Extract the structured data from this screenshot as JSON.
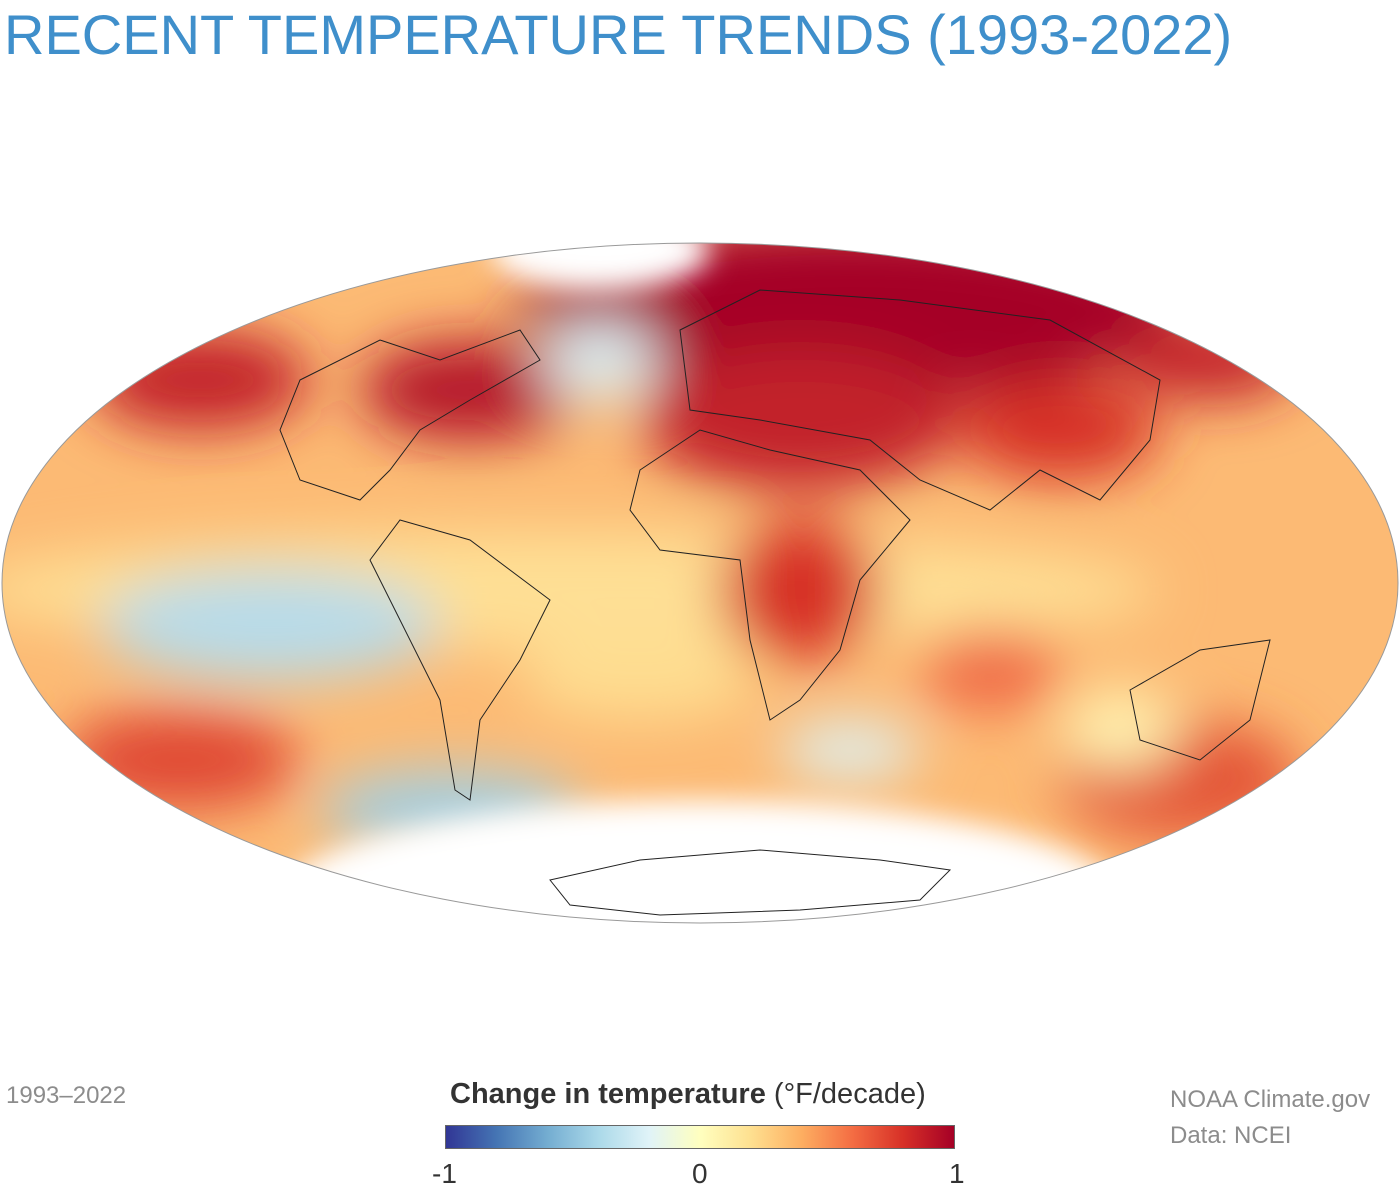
{
  "title": "RECENT TEMPERATURE TRENDS (1993-2022)",
  "period_label": "1993–2022",
  "credit": {
    "line1": "NOAA Climate.gov",
    "line2": "Data: NCEI"
  },
  "legend": {
    "title_bold": "Change in temperature",
    "units": "(°F/decade)",
    "min_label": "-1",
    "mid_label": "0",
    "max_label": "1",
    "colors": [
      "#313695",
      "#4575b4",
      "#74add1",
      "#abd9e9",
      "#e0f3f8",
      "#ffffbf",
      "#fee090",
      "#fdae61",
      "#f46d43",
      "#d73027",
      "#a50026"
    ]
  }
}
